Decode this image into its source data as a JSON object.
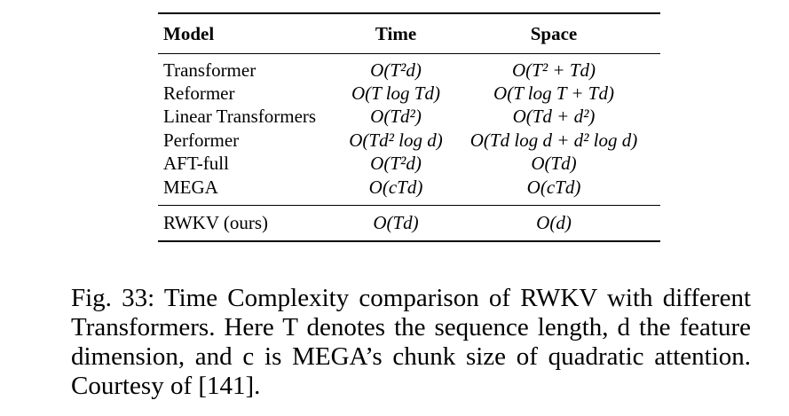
{
  "table": {
    "headers": {
      "model": "Model",
      "time": "Time",
      "space": "Space"
    },
    "rows": [
      {
        "model": "Transformer",
        "time": "O(T²d)",
        "space": "O(T² + Td)"
      },
      {
        "model": "Reformer",
        "time": "O(T log Td)",
        "space": "O(T log T + Td)"
      },
      {
        "model": "Linear Transformers",
        "time": "O(Td²)",
        "space": "O(Td + d²)"
      },
      {
        "model": "Performer",
        "time": "O(Td² log d)",
        "space": "O(Td log d + d² log d)"
      },
      {
        "model": "AFT-full",
        "time": "O(T²d)",
        "space": "O(Td)"
      },
      {
        "model": "MEGA",
        "time": "O(cTd)",
        "space": "O(cTd)"
      }
    ],
    "ours": {
      "model": "RWKV (ours)",
      "time": "O(Td)",
      "space": "O(d)"
    }
  },
  "caption": {
    "label": "Fig. 33:",
    "text": "Time Complexity comparison of RWKV with different Transformers. Here T denotes the sequence length, d the feature dimension, and c is MEGA’s chunk size of quadratic attention. Courtesy of [141]."
  }
}
